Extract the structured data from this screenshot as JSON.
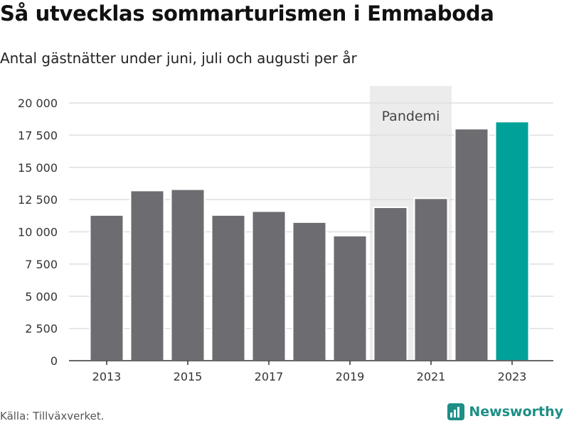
{
  "title": "Så utvecklas sommarturismen i Emmaboda",
  "subtitle": "Antal gästnätter under juni, juli och augusti per år",
  "source": "Källa: Tillväxverket.",
  "brand": {
    "name": "Newsworthy",
    "icon": "newsworthy-logo-icon",
    "color": "#1e8e86"
  },
  "chart_data": {
    "type": "bar",
    "x": [
      2013,
      2014,
      2015,
      2016,
      2017,
      2018,
      2019,
      2020,
      2021,
      2022,
      2023
    ],
    "values": [
      11300,
      13200,
      13300,
      11300,
      11600,
      10750,
      9700,
      11900,
      12600,
      18000,
      18550
    ],
    "bar_colors": [
      "#6d6c71",
      "#6d6c71",
      "#6d6c71",
      "#6d6c71",
      "#6d6c71",
      "#6d6c71",
      "#6d6c71",
      "#6d6c71",
      "#6d6c71",
      "#6d6c71",
      "#00a199"
    ],
    "ylim": [
      0,
      20000
    ],
    "yticks": [
      0,
      2500,
      5000,
      7500,
      10000,
      12500,
      15000,
      17500,
      20000
    ],
    "ytick_labels": [
      "0",
      "2 500",
      "5 000",
      "7 500",
      "10 000",
      "12 500",
      "15 000",
      "17 500",
      "20 000"
    ],
    "xtick_labels": [
      "2013",
      "2015",
      "2017",
      "2019",
      "2021",
      "2023"
    ],
    "grid": true,
    "highlight": {
      "label": "Pandemi",
      "from_year": 2020,
      "to_year": 2021,
      "color": "#ececec"
    }
  }
}
